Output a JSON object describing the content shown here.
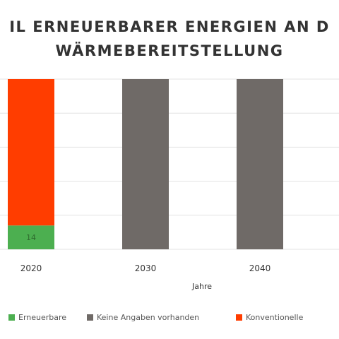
{
  "chart_data": {
    "type": "bar",
    "stacked": true,
    "title_line1": "IL ERNEUERBARER ENERGIEN AN D",
    "title_line2": "WÄRMEBEREITSTELLUNG",
    "xlabel": "Jahre",
    "ylabel": "",
    "ylim": [
      0,
      100
    ],
    "categories": [
      "2020",
      "2030",
      "2040"
    ],
    "series": [
      {
        "name": "Erneuerbare",
        "color": "#4caf50",
        "values": [
          14,
          0,
          0
        ],
        "labels": [
          "14",
          "",
          ""
        ]
      },
      {
        "name": "Keine Angaben vorhanden",
        "color": "#6f6a67",
        "values": [
          0,
          100,
          100
        ],
        "labels": [
          "",
          "",
          ""
        ]
      },
      {
        "name": "Konventionelle",
        "color": "#ff3d00",
        "values": [
          86,
          0,
          0
        ],
        "labels": [
          "",
          "",
          ""
        ]
      }
    ],
    "grid": true,
    "legend_position": "bottom"
  }
}
